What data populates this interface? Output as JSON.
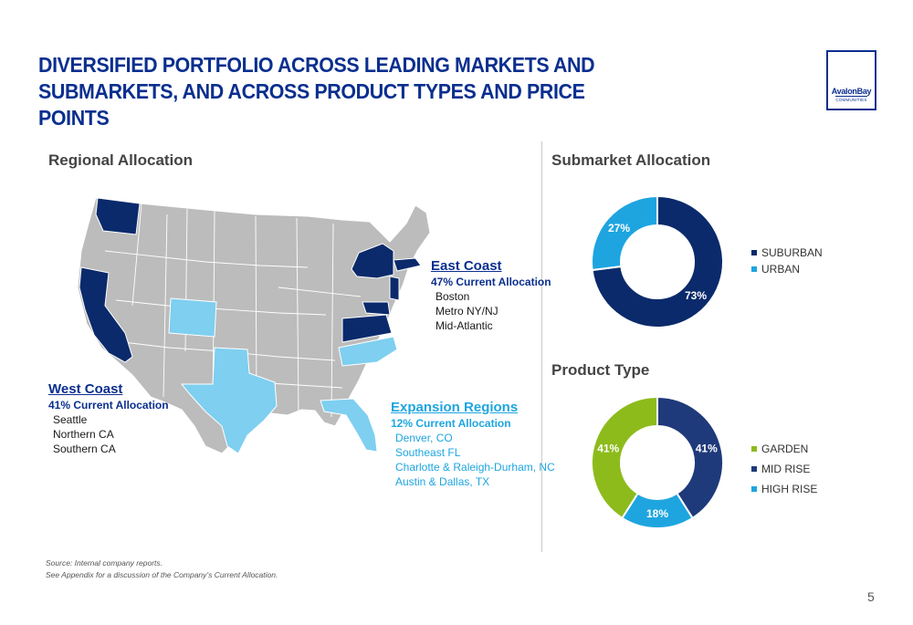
{
  "title": "DIVERSIFIED PORTFOLIO ACROSS LEADING MARKETS AND SUBMARKETS, AND ACROSS PRODUCT TYPES AND PRICE POINTS",
  "logo": {
    "brand": "AvalonBay",
    "sub": "COMMUNITIES"
  },
  "sections": {
    "regional": "Regional Allocation",
    "submarket": "Submarket Allocation",
    "product": "Product Type"
  },
  "regions": {
    "east": {
      "name": "East Coast",
      "allocation": "47% Current Allocation",
      "markets": [
        "Boston",
        "Metro NY/NJ",
        "Mid-Atlantic"
      ]
    },
    "west": {
      "name": "West Coast",
      "allocation": "41% Current Allocation",
      "markets": [
        "Seattle",
        "Northern CA",
        "Southern CA"
      ]
    },
    "expansion": {
      "name": "Expansion Regions",
      "allocation": "12% Current Allocation",
      "markets": [
        "Denver, CO",
        "Southeast FL",
        "Charlotte & Raleigh-Durham, NC",
        "Austin & Dallas, TX"
      ]
    }
  },
  "colors": {
    "navy": "#0b2f8f",
    "dark_navy": "#0a2a6b",
    "mid_navy": "#1f3a7a",
    "light_blue": "#1ea5e0",
    "sky": "#7ecff0",
    "green": "#8dbb1c",
    "gray": "#b8b8b8"
  },
  "chart_data": [
    {
      "type": "pie",
      "title": "Submarket Allocation",
      "series": [
        {
          "name": "SUBURBAN",
          "value": 73,
          "label": "73%",
          "color": "#0a2a6b"
        },
        {
          "name": "URBAN",
          "value": 27,
          "label": "27%",
          "color": "#1ea5e0"
        }
      ]
    },
    {
      "type": "pie",
      "title": "Product Type",
      "series": [
        {
          "name": "GARDEN",
          "value": 41,
          "label": "41%",
          "color": "#8dbb1c"
        },
        {
          "name": "MID RISE",
          "value": 41,
          "label": "41%",
          "color": "#1f3a7a"
        },
        {
          "name": "HIGH RISE",
          "value": 18,
          "label": "18%",
          "color": "#1ea5e0"
        }
      ]
    }
  ],
  "footnotes": [
    "Source: Internal company reports.",
    "See Appendix for a discussion of the Company’s Current Allocation."
  ],
  "page_number": "5"
}
